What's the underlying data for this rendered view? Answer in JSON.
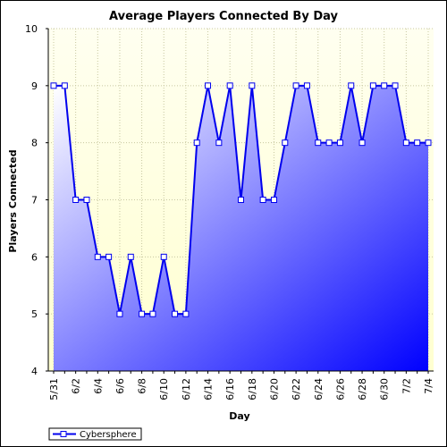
{
  "chart_data": {
    "type": "area",
    "title": "Average Players Connected By Day",
    "xlabel": "Day",
    "ylabel": "Players Connected",
    "ylim": [
      4,
      10
    ],
    "yticks": [
      4,
      5,
      6,
      7,
      8,
      9,
      10
    ],
    "grid": true,
    "legend_position": "bottom-left",
    "categories": [
      "5/31",
      "6/1",
      "6/2",
      "6/3",
      "6/4",
      "6/5",
      "6/6",
      "6/7",
      "6/8",
      "6/9",
      "6/10",
      "6/11",
      "6/12",
      "6/13",
      "6/14",
      "6/15",
      "6/16",
      "6/17",
      "6/18",
      "6/19",
      "6/20",
      "6/21",
      "6/22",
      "6/23",
      "6/24",
      "6/25",
      "6/26",
      "6/27",
      "6/28",
      "6/29",
      "6/30",
      "7/1",
      "7/2",
      "7/3",
      "7/4"
    ],
    "x_tick_labels": [
      "5/31",
      "6/2",
      "6/4",
      "6/6",
      "6/8",
      "6/10",
      "6/12",
      "6/14",
      "6/16",
      "6/18",
      "6/20",
      "6/22",
      "6/24",
      "6/26",
      "6/28",
      "6/30",
      "7/2",
      "7/4"
    ],
    "series": [
      {
        "name": "Cybersphere",
        "line_color": "#0000ee",
        "fill_top_color": "#ffffff",
        "fill_bottom_color": "#0000ff",
        "values": [
          9,
          9,
          7,
          7,
          6,
          6,
          5,
          6,
          5,
          5,
          6,
          5,
          5,
          8,
          9,
          8,
          9,
          7,
          9,
          7,
          7,
          8,
          9,
          9,
          8,
          8,
          8,
          9,
          8,
          9,
          9,
          9,
          8,
          8,
          8
        ]
      }
    ],
    "plot_background_top": "#ffffe0",
    "plot_background_bottom": "#ffffd8"
  }
}
